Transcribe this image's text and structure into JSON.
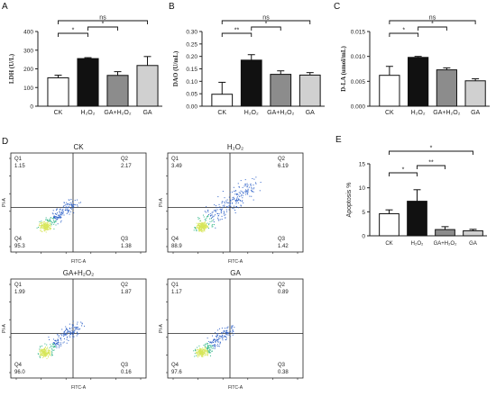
{
  "colors": {
    "white": "#ffffff",
    "black": "#111111",
    "darkgray": "#8c8c8c",
    "lightgray": "#d0d0d0",
    "axis": "#222222",
    "flow_low": "#2f62c8",
    "flow_mid": "#36b88a",
    "flow_high": "#d7e65a"
  },
  "chart_data": [
    {
      "panel": "A",
      "type": "bar",
      "ylabel": "LDH (U/L)",
      "categories": [
        "CK",
        "H₂O₂",
        "GA+H₂O₂",
        "GA"
      ],
      "values": [
        152,
        255,
        165,
        218
      ],
      "errors": [
        14,
        5,
        20,
        48
      ],
      "fills": [
        "white",
        "black",
        "darkgray",
        "lightgray"
      ],
      "ylim": [
        0,
        400
      ],
      "yticks": [
        "0",
        "100",
        "200",
        "300",
        "400"
      ],
      "comparisons": [
        {
          "from": 0,
          "to": 1,
          "label": "*"
        },
        {
          "from": 1,
          "to": 2,
          "label": "*"
        },
        {
          "from": 0,
          "to": 3,
          "label": "ns"
        }
      ]
    },
    {
      "panel": "B",
      "type": "bar",
      "ylabel": "DAO (U/mL)",
      "categories": [
        "CK",
        "H₂O₂",
        "GA+H₂O₂",
        "GA"
      ],
      "values": [
        0.048,
        0.185,
        0.128,
        0.125
      ],
      "errors": [
        0.048,
        0.022,
        0.014,
        0.01
      ],
      "fills": [
        "white",
        "black",
        "darkgray",
        "lightgray"
      ],
      "ylim": [
        0,
        0.3
      ],
      "yticks": [
        "0.00",
        "0.05",
        "0.10",
        "0.15",
        "0.20",
        "0.25",
        "0.30"
      ],
      "comparisons": [
        {
          "from": 0,
          "to": 1,
          "label": "**"
        },
        {
          "from": 1,
          "to": 2,
          "label": "*"
        },
        {
          "from": 0,
          "to": 3,
          "label": "ns"
        }
      ]
    },
    {
      "panel": "C",
      "type": "bar",
      "ylabel": "D-LA (umol/mL)",
      "categories": [
        "CK",
        "H₂O₂",
        "GA+H₂O₂",
        "GA"
      ],
      "values": [
        0.0062,
        0.0098,
        0.0073,
        0.0051
      ],
      "errors": [
        0.0018,
        0.0002,
        0.0004,
        0.0004
      ],
      "fills": [
        "white",
        "black",
        "darkgray",
        "lightgray"
      ],
      "ylim": [
        0,
        0.015
      ],
      "yticks": [
        "0.000",
        "0.005",
        "0.010",
        "0.015"
      ],
      "comparisons": [
        {
          "from": 0,
          "to": 1,
          "label": "*"
        },
        {
          "from": 1,
          "to": 2,
          "label": "*"
        },
        {
          "from": 0,
          "to": 3,
          "label": "ns"
        }
      ]
    },
    {
      "panel": "E",
      "type": "bar",
      "ylabel": "Apoptosis %",
      "categories": [
        "CK",
        "H₂O₂",
        "GA+H₂O₂",
        "GA"
      ],
      "values": [
        4.6,
        7.2,
        1.3,
        1.05
      ],
      "errors": [
        0.8,
        2.4,
        0.6,
        0.3
      ],
      "fills": [
        "white",
        "black",
        "darkgray",
        "lightgray"
      ],
      "ylim": [
        0,
        15
      ],
      "yticks": [
        "0",
        "5",
        "10",
        "15"
      ],
      "comparisons": [
        {
          "from": 0,
          "to": 1,
          "label": "*"
        },
        {
          "from": 1,
          "to": 2,
          "label": "**"
        },
        {
          "from": 0,
          "to": 3,
          "label": "*"
        }
      ]
    },
    {
      "panel": "D",
      "type": "scatter",
      "xlabel": "FITC-A",
      "ylabel": "PI-A",
      "plots": [
        {
          "title": "CK",
          "quadrants": {
            "Q1": "1.15",
            "Q2": "2.17",
            "Q3": "1.38",
            "Q4": "95.3"
          },
          "spread": 0.22
        },
        {
          "title": "H₂O₂",
          "quadrants": {
            "Q1": "3.49",
            "Q2": "6.19",
            "Q3": "1.42",
            "Q4": "88.9"
          },
          "spread": 0.62
        },
        {
          "title": "GA+H₂O₂",
          "quadrants": {
            "Q1": "1.99",
            "Q2": "1.87",
            "Q3": "0.16",
            "Q4": "96.0"
          },
          "spread": 0.3
        },
        {
          "title": "GA",
          "quadrants": {
            "Q1": "1.17",
            "Q2": "0.89",
            "Q3": "0.38",
            "Q4": "97.6"
          },
          "spread": 0.25
        }
      ]
    }
  ]
}
